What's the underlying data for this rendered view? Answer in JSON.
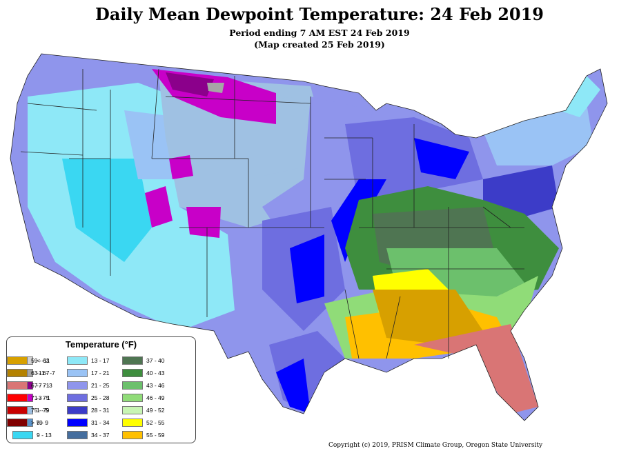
{
  "title": "Daily Mean Dewpoint Temperature: 24 Feb 2019",
  "subtitle_1": "Period ending 7 AM EST 24 Feb 2019",
  "subtitle_2": "(Map created 25 Feb 2019)",
  "legend": {
    "title": "Temperature (°F)",
    "items": [
      {
        "label": "< -11",
        "color": "#d3d3d3"
      },
      {
        "label": "-11 - -7",
        "color": "#a6a6a6"
      },
      {
        "label": "-7 - -3",
        "color": "#8b008b"
      },
      {
        "label": "-3 - 1",
        "color": "#c800c8"
      },
      {
        "label": "1 - 5",
        "color": "#9fc1e3"
      },
      {
        "label": "5 - 9",
        "color": "#5b93c9"
      },
      {
        "label": "9 - 13",
        "color": "#3ad7f2"
      },
      {
        "label": "13 - 17",
        "color": "#8ee8f7"
      },
      {
        "label": "17 - 21",
        "color": "#9ac3f5"
      },
      {
        "label": "21 - 25",
        "color": "#8f95ec"
      },
      {
        "label": "25 - 28",
        "color": "#6e6ee0"
      },
      {
        "label": "28 - 31",
        "color": "#3c3cc8"
      },
      {
        "label": "31 - 34",
        "color": "#0000ff"
      },
      {
        "label": "34 - 37",
        "color": "#456e9e"
      },
      {
        "label": "37 - 40",
        "color": "#4f7552"
      },
      {
        "label": "40 - 43",
        "color": "#3e8e3e"
      },
      {
        "label": "43 - 46",
        "color": "#6cc06c"
      },
      {
        "label": "46 - 49",
        "color": "#90dc78"
      },
      {
        "label": "49 - 52",
        "color": "#c8f5b4"
      },
      {
        "label": "52 - 55",
        "color": "#ffff00"
      },
      {
        "label": "55 - 59",
        "color": "#ffc000"
      },
      {
        "label": "59 - 63",
        "color": "#d7a000"
      },
      {
        "label": "63 - 67",
        "color": "#b48200"
      },
      {
        "label": "67 - 71",
        "color": "#d97575"
      },
      {
        "label": "71 - 75",
        "color": "#ff0000"
      },
      {
        "label": "75 - 79",
        "color": "#c80000"
      },
      {
        "label": "> 79",
        "color": "#800000"
      }
    ]
  },
  "copyright": "Copyright (c) 2019, PRISM Climate Group, Oregon State University"
}
